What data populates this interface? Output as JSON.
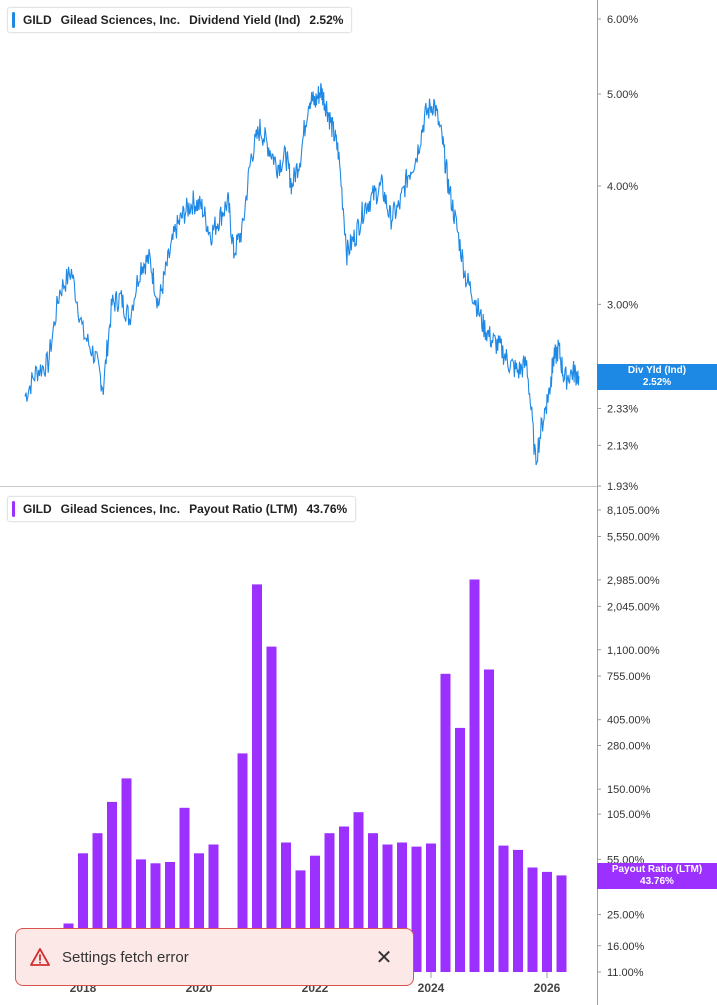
{
  "chart_data": [
    {
      "type": "line",
      "ticker": "GILD",
      "company": "Gilead Sciences, Inc.",
      "metric": "Dividend Yield (Ind)",
      "current_value": "2.52%",
      "tag_label": "Div Yld (Ind)",
      "tag_value": "2.52%",
      "color": "#1e88e5",
      "scale": "log",
      "ylim": [
        1.93,
        6.4
      ],
      "yticks": [
        "6.00%",
        "5.00%",
        "4.00%",
        "3.00%",
        "2.33%",
        "2.13%",
        "1.93%"
      ],
      "ytick_values": [
        6.0,
        5.0,
        4.0,
        3.0,
        2.33,
        2.13,
        1.93
      ],
      "hidden_tick": "2.6",
      "x": [
        2017.0,
        2017.2,
        2017.4,
        2017.6,
        2017.8,
        2018.0,
        2018.2,
        2018.35,
        2018.5,
        2018.65,
        2018.8,
        2019.0,
        2019.15,
        2019.3,
        2019.45,
        2019.6,
        2019.75,
        2019.9,
        2020.05,
        2020.2,
        2020.35,
        2020.5,
        2020.6,
        2020.75,
        2020.9,
        2021.05,
        2021.2,
        2021.35,
        2021.5,
        2021.6,
        2021.75,
        2021.9,
        2022.0,
        2022.1,
        2022.2,
        2022.3,
        2022.4,
        2022.55,
        2022.7,
        2022.85,
        2023.0,
        2023.15,
        2023.3,
        2023.45,
        2023.6,
        2023.75,
        2023.9,
        2024.05,
        2024.2,
        2024.3,
        2024.45,
        2024.6,
        2024.75,
        2024.9,
        2025.05,
        2025.2,
        2025.35,
        2025.5,
        2025.65,
        2025.8,
        2025.95,
        2026.05,
        2026.1,
        2026.2,
        2026.3,
        2026.45,
        2026.55
      ],
      "values": [
        2.4,
        2.55,
        2.6,
        3.1,
        3.25,
        2.8,
        2.65,
        2.45,
        3.0,
        3.05,
        2.9,
        3.3,
        3.35,
        3.0,
        3.3,
        3.6,
        3.75,
        3.85,
        3.8,
        3.55,
        3.7,
        3.85,
        3.4,
        3.6,
        4.3,
        4.6,
        4.4,
        4.2,
        4.3,
        4.0,
        4.3,
        4.95,
        4.9,
        5.05,
        4.85,
        4.6,
        4.35,
        3.4,
        3.55,
        3.8,
        3.9,
        4.0,
        3.7,
        3.8,
        4.1,
        4.3,
        4.75,
        4.9,
        4.45,
        4.0,
        3.6,
        3.2,
        3.05,
        2.85,
        2.75,
        2.7,
        2.6,
        2.55,
        2.6,
        2.05,
        2.3,
        2.45,
        2.6,
        2.7,
        2.5,
        2.55,
        2.52
      ]
    },
    {
      "type": "bar",
      "ticker": "GILD",
      "company": "Gilead Sciences, Inc.",
      "metric": "Payout Ratio (LTM)",
      "current_value": "43.76%",
      "tag_label": "Payout Ratio (LTM)",
      "tag_value": "43.76%",
      "color": "#9b30ff",
      "scale": "log",
      "ylim": [
        11.0,
        8105.0
      ],
      "yticks": [
        "8,105.00%",
        "5,550.00%",
        "2,985.00%",
        "2,045.00%",
        "1,100.00%",
        "755.00%",
        "405.00%",
        "280.00%",
        "150.00%",
        "105.00%",
        "55.00%",
        "25.00%",
        "16.00%",
        "11.00%"
      ],
      "ytick_values": [
        8105,
        5550,
        2985,
        2045,
        1100,
        755,
        405,
        280,
        150,
        105,
        55,
        25,
        16,
        11
      ],
      "x_tick_labels": [
        "2018",
        "2020",
        "2022",
        "2024",
        "2026"
      ],
      "x_ticks": [
        2018,
        2020,
        2022,
        2024,
        2026
      ],
      "x": [
        2017.0,
        2017.25,
        2017.5,
        2017.75,
        2018.0,
        2018.25,
        2018.5,
        2018.75,
        2019.0,
        2019.25,
        2019.5,
        2019.75,
        2020.0,
        2020.25,
        2020.5,
        2020.75,
        2021.0,
        2021.25,
        2021.5,
        2021.75,
        2022.0,
        2022.25,
        2022.5,
        2022.75,
        2023.0,
        2023.25,
        2023.5,
        2023.75,
        2024.0,
        2024.25,
        2024.5,
        2024.75,
        2025.0,
        2025.25,
        2025.5,
        2025.75,
        2026.0,
        2026.25
      ],
      "values": [
        16.0,
        18.0,
        20.0,
        22.0,
        60.0,
        80.0,
        125.0,
        175.0,
        55.0,
        52.0,
        53.0,
        115.0,
        60.0,
        68.0,
        15.0,
        250.0,
        2800.0,
        1150.0,
        70.0,
        47.0,
        58.0,
        80.0,
        88.0,
        108.0,
        80.0,
        68.0,
        70.0,
        66.0,
        69.0,
        780.0,
        360.0,
        3000.0,
        830.0,
        67.0,
        63.0,
        49.0,
        46.0,
        43.76
      ]
    }
  ],
  "toast": {
    "message": "Settings fetch error",
    "icon": "warning-triangle-icon",
    "close_icon": "close-icon"
  }
}
